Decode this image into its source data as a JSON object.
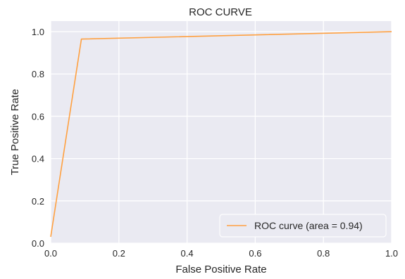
{
  "chart_data": {
    "type": "line",
    "title": "ROC CURVE",
    "xlabel": "False Positive Rate",
    "ylabel": "True Positive Rate",
    "xlim": [
      0.0,
      1.0
    ],
    "ylim": [
      0.0,
      1.05
    ],
    "xticks": [
      "0.0",
      "0.2",
      "0.4",
      "0.6",
      "0.8",
      "1.0"
    ],
    "yticks": [
      "0.0",
      "0.2",
      "0.4",
      "0.6",
      "0.8",
      "1.0"
    ],
    "grid": true,
    "legend_position": "lower-right",
    "series": [
      {
        "name": "ROC curve (area = 0.94)",
        "color": "#ffa040",
        "x": [
          0.0,
          0.09,
          1.0
        ],
        "y": [
          0.03,
          0.965,
          1.0
        ]
      }
    ],
    "background": "#eaeaf2",
    "grid_color": "#ffffff"
  }
}
